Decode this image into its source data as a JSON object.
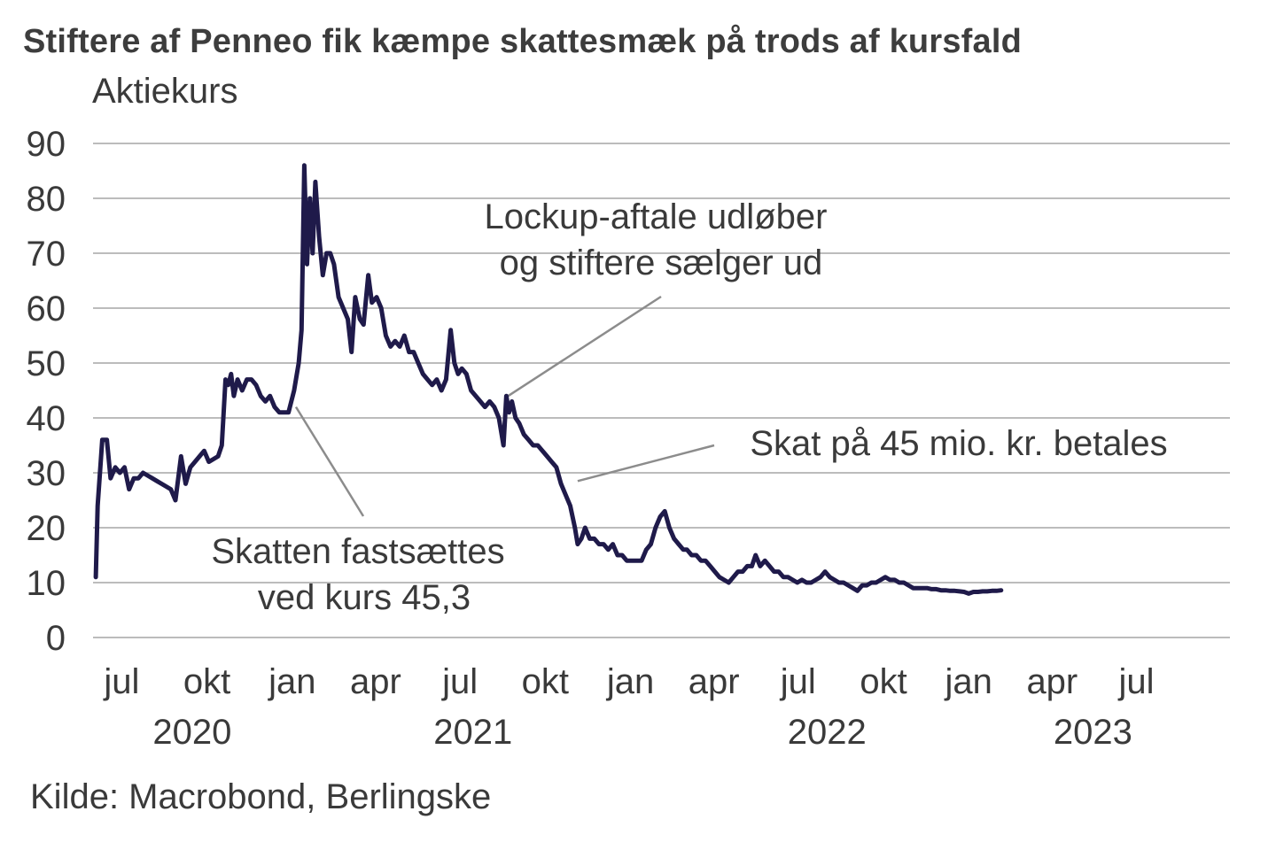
{
  "title": "Stiftere af Penneo fik kæmpe skattesmæk på trods af kursfald",
  "source": "Kilde: Macrobond, Berlingske",
  "colors": {
    "series": "#1f1a4a",
    "grid": "#a6a6a6",
    "annotation_line": "#8c8c8c",
    "text": "#3a3a3a"
  },
  "chart_data": {
    "type": "line",
    "title": "Stiftere af Penneo fik kæmpe skattesmæk på trods af kursfald",
    "ylabel": "Aktiekurs",
    "xlabel": "",
    "ylim": [
      0,
      90
    ],
    "yticks": [
      0,
      10,
      20,
      30,
      40,
      50,
      60,
      70,
      80,
      90
    ],
    "xlim": [
      "2020-06-01",
      "2023-09-15"
    ],
    "grid": true,
    "x_month_ticks": [
      {
        "label": "jul",
        "date": "2020-07-01"
      },
      {
        "label": "okt",
        "date": "2020-10-01"
      },
      {
        "label": "jan",
        "date": "2021-01-01"
      },
      {
        "label": "apr",
        "date": "2021-04-01"
      },
      {
        "label": "jul",
        "date": "2021-07-01"
      },
      {
        "label": "okt",
        "date": "2021-10-01"
      },
      {
        "label": "jan",
        "date": "2022-01-01"
      },
      {
        "label": "apr",
        "date": "2022-04-01"
      },
      {
        "label": "jul",
        "date": "2022-07-01"
      },
      {
        "label": "okt",
        "date": "2022-10-01"
      },
      {
        "label": "jan",
        "date": "2023-01-01"
      },
      {
        "label": "apr",
        "date": "2023-04-01"
      },
      {
        "label": "jul",
        "date": "2023-07-01"
      }
    ],
    "x_year_labels": [
      {
        "label": "2020",
        "date": "2020-09-15"
      },
      {
        "label": "2021",
        "date": "2021-07-15"
      },
      {
        "label": "2022",
        "date": "2022-08-01"
      },
      {
        "label": "2023",
        "date": "2023-05-15"
      }
    ],
    "series": [
      {
        "values": [
          [
            "2020-06-03",
            11
          ],
          [
            "2020-06-05",
            24
          ],
          [
            "2020-06-10",
            36
          ],
          [
            "2020-06-15",
            36
          ],
          [
            "2020-06-19",
            29
          ],
          [
            "2020-06-24",
            31
          ],
          [
            "2020-06-29",
            30
          ],
          [
            "2020-07-04",
            31
          ],
          [
            "2020-07-09",
            27
          ],
          [
            "2020-07-14",
            29
          ],
          [
            "2020-07-19",
            29
          ],
          [
            "2020-07-24",
            30
          ],
          [
            "2020-07-29",
            29.5
          ],
          [
            "2020-08-03",
            29
          ],
          [
            "2020-08-08",
            28.5
          ],
          [
            "2020-08-13",
            28
          ],
          [
            "2020-08-18",
            27.5
          ],
          [
            "2020-08-23",
            27
          ],
          [
            "2020-08-28",
            25
          ],
          [
            "2020-09-03",
            33
          ],
          [
            "2020-09-08",
            28
          ],
          [
            "2020-09-13",
            31
          ],
          [
            "2020-09-18",
            32
          ],
          [
            "2020-09-23",
            33
          ],
          [
            "2020-09-28",
            34
          ],
          [
            "2020-10-03",
            32
          ],
          [
            "2020-10-08",
            32.5
          ],
          [
            "2020-10-13",
            33
          ],
          [
            "2020-10-17",
            35
          ],
          [
            "2020-10-21",
            47
          ],
          [
            "2020-10-24",
            46
          ],
          [
            "2020-10-27",
            48
          ],
          [
            "2020-10-30",
            44
          ],
          [
            "2020-11-03",
            47
          ],
          [
            "2020-11-08",
            45
          ],
          [
            "2020-11-13",
            47
          ],
          [
            "2020-11-18",
            47
          ],
          [
            "2020-11-23",
            46
          ],
          [
            "2020-11-28",
            44
          ],
          [
            "2020-12-03",
            43
          ],
          [
            "2020-12-08",
            44
          ],
          [
            "2020-12-13",
            42
          ],
          [
            "2020-12-18",
            41
          ],
          [
            "2020-12-23",
            41
          ],
          [
            "2020-12-28",
            41
          ],
          [
            "2021-01-03",
            45
          ],
          [
            "2021-01-08",
            50
          ],
          [
            "2021-01-11",
            56
          ],
          [
            "2021-01-14",
            86
          ],
          [
            "2021-01-17",
            68
          ],
          [
            "2021-01-20",
            80
          ],
          [
            "2021-01-23",
            70
          ],
          [
            "2021-01-26",
            83
          ],
          [
            "2021-01-30",
            73
          ],
          [
            "2021-02-03",
            66
          ],
          [
            "2021-02-07",
            70
          ],
          [
            "2021-02-11",
            70
          ],
          [
            "2021-02-15",
            68
          ],
          [
            "2021-02-20",
            62
          ],
          [
            "2021-02-25",
            60
          ],
          [
            "2021-03-02",
            58
          ],
          [
            "2021-03-06",
            52
          ],
          [
            "2021-03-10",
            62
          ],
          [
            "2021-03-15",
            58
          ],
          [
            "2021-03-19",
            57
          ],
          [
            "2021-03-24",
            66
          ],
          [
            "2021-03-28",
            61
          ],
          [
            "2021-04-02",
            62
          ],
          [
            "2021-04-07",
            60
          ],
          [
            "2021-04-12",
            55
          ],
          [
            "2021-04-17",
            53
          ],
          [
            "2021-04-22",
            54
          ],
          [
            "2021-04-27",
            53
          ],
          [
            "2021-05-02",
            55
          ],
          [
            "2021-05-07",
            52
          ],
          [
            "2021-05-12",
            52
          ],
          [
            "2021-05-17",
            50
          ],
          [
            "2021-05-22",
            48
          ],
          [
            "2021-05-27",
            47
          ],
          [
            "2021-06-01",
            46
          ],
          [
            "2021-06-06",
            47
          ],
          [
            "2021-06-11",
            45
          ],
          [
            "2021-06-16",
            47
          ],
          [
            "2021-06-21",
            56
          ],
          [
            "2021-06-25",
            50
          ],
          [
            "2021-06-29",
            48
          ],
          [
            "2021-07-03",
            49
          ],
          [
            "2021-07-08",
            48
          ],
          [
            "2021-07-13",
            45
          ],
          [
            "2021-07-18",
            44
          ],
          [
            "2021-07-23",
            43
          ],
          [
            "2021-07-28",
            42
          ],
          [
            "2021-08-02",
            43
          ],
          [
            "2021-08-07",
            42
          ],
          [
            "2021-08-12",
            40
          ],
          [
            "2021-08-17",
            35
          ],
          [
            "2021-08-20",
            44
          ],
          [
            "2021-08-23",
            41
          ],
          [
            "2021-08-26",
            43
          ],
          [
            "2021-08-30",
            40
          ],
          [
            "2021-09-03",
            39
          ],
          [
            "2021-09-08",
            37
          ],
          [
            "2021-09-13",
            36
          ],
          [
            "2021-09-18",
            35
          ],
          [
            "2021-09-23",
            35
          ],
          [
            "2021-09-28",
            34
          ],
          [
            "2021-10-03",
            33
          ],
          [
            "2021-10-08",
            32
          ],
          [
            "2021-10-13",
            31
          ],
          [
            "2021-10-18",
            28
          ],
          [
            "2021-10-23",
            26
          ],
          [
            "2021-10-28",
            24
          ],
          [
            "2021-11-02",
            20
          ],
          [
            "2021-11-05",
            17
          ],
          [
            "2021-11-09",
            18
          ],
          [
            "2021-11-13",
            20
          ],
          [
            "2021-11-18",
            18
          ],
          [
            "2021-11-23",
            18
          ],
          [
            "2021-11-28",
            17
          ],
          [
            "2021-12-03",
            17
          ],
          [
            "2021-12-08",
            16
          ],
          [
            "2021-12-13",
            17
          ],
          [
            "2021-12-18",
            15
          ],
          [
            "2021-12-23",
            15
          ],
          [
            "2021-12-28",
            14
          ],
          [
            "2022-01-03",
            14
          ],
          [
            "2022-01-08",
            14
          ],
          [
            "2022-01-13",
            14
          ],
          [
            "2022-01-18",
            16
          ],
          [
            "2022-01-23",
            17
          ],
          [
            "2022-01-28",
            20
          ],
          [
            "2022-02-02",
            22
          ],
          [
            "2022-02-07",
            23
          ],
          [
            "2022-02-12",
            20
          ],
          [
            "2022-02-17",
            18
          ],
          [
            "2022-02-22",
            17
          ],
          [
            "2022-02-27",
            16
          ],
          [
            "2022-03-03",
            16
          ],
          [
            "2022-03-08",
            15
          ],
          [
            "2022-03-13",
            15
          ],
          [
            "2022-03-18",
            14
          ],
          [
            "2022-03-23",
            14
          ],
          [
            "2022-03-28",
            13
          ],
          [
            "2022-04-02",
            12
          ],
          [
            "2022-04-07",
            11
          ],
          [
            "2022-04-12",
            10.5
          ],
          [
            "2022-04-17",
            10
          ],
          [
            "2022-04-22",
            11
          ],
          [
            "2022-04-27",
            12
          ],
          [
            "2022-05-02",
            12
          ],
          [
            "2022-05-07",
            13
          ],
          [
            "2022-05-12",
            13
          ],
          [
            "2022-05-16",
            15
          ],
          [
            "2022-05-21",
            13
          ],
          [
            "2022-05-26",
            14
          ],
          [
            "2022-05-31",
            13
          ],
          [
            "2022-06-05",
            12
          ],
          [
            "2022-06-10",
            12
          ],
          [
            "2022-06-15",
            11
          ],
          [
            "2022-06-20",
            11
          ],
          [
            "2022-06-25",
            10.5
          ],
          [
            "2022-06-30",
            10
          ],
          [
            "2022-07-05",
            10.5
          ],
          [
            "2022-07-10",
            10
          ],
          [
            "2022-07-15",
            10
          ],
          [
            "2022-07-20",
            10.5
          ],
          [
            "2022-07-25",
            11
          ],
          [
            "2022-07-30",
            12
          ],
          [
            "2022-08-04",
            11
          ],
          [
            "2022-08-09",
            10.5
          ],
          [
            "2022-08-14",
            10
          ],
          [
            "2022-08-19",
            10
          ],
          [
            "2022-08-24",
            9.5
          ],
          [
            "2022-08-29",
            9
          ],
          [
            "2022-09-03",
            8.5
          ],
          [
            "2022-09-08",
            9.5
          ],
          [
            "2022-09-13",
            9.5
          ],
          [
            "2022-09-18",
            10
          ],
          [
            "2022-09-23",
            10
          ],
          [
            "2022-09-28",
            10.5
          ],
          [
            "2022-10-03",
            11
          ],
          [
            "2022-10-08",
            10.5
          ],
          [
            "2022-10-13",
            10.5
          ],
          [
            "2022-10-18",
            10
          ],
          [
            "2022-10-23",
            10
          ],
          [
            "2022-10-28",
            9.5
          ],
          [
            "2022-11-02",
            9
          ],
          [
            "2022-11-07",
            9
          ],
          [
            "2022-11-12",
            9
          ],
          [
            "2022-11-17",
            9
          ],
          [
            "2022-11-22",
            8.8
          ],
          [
            "2022-11-27",
            8.8
          ],
          [
            "2022-12-02",
            8.6
          ],
          [
            "2022-12-07",
            8.6
          ],
          [
            "2022-12-12",
            8.5
          ],
          [
            "2022-12-17",
            8.5
          ],
          [
            "2022-12-22",
            8.4
          ],
          [
            "2022-12-27",
            8.3
          ],
          [
            "2023-01-01",
            8.0
          ],
          [
            "2023-01-06",
            8.3
          ],
          [
            "2023-01-11",
            8.3
          ],
          [
            "2023-01-16",
            8.4
          ],
          [
            "2023-01-21",
            8.4
          ],
          [
            "2023-01-26",
            8.5
          ],
          [
            "2023-01-31",
            8.5
          ],
          [
            "2023-02-05",
            8.6
          ]
        ]
      }
    ],
    "annotations": [
      {
        "text_lines": [
          "Lockup-aftale udløber",
          "og stiftere sælger ud"
        ],
        "point": [
          "2021-08-22",
          44
        ]
      },
      {
        "text_lines": [
          "Skat på 45 mio. kr. betales"
        ],
        "point": [
          "2021-11-05",
          28.5
        ]
      },
      {
        "text_lines": [
          "Skatten fastsættes",
          "ved kurs 45,3"
        ],
        "point": [
          "2021-01-05",
          42
        ]
      }
    ]
  }
}
